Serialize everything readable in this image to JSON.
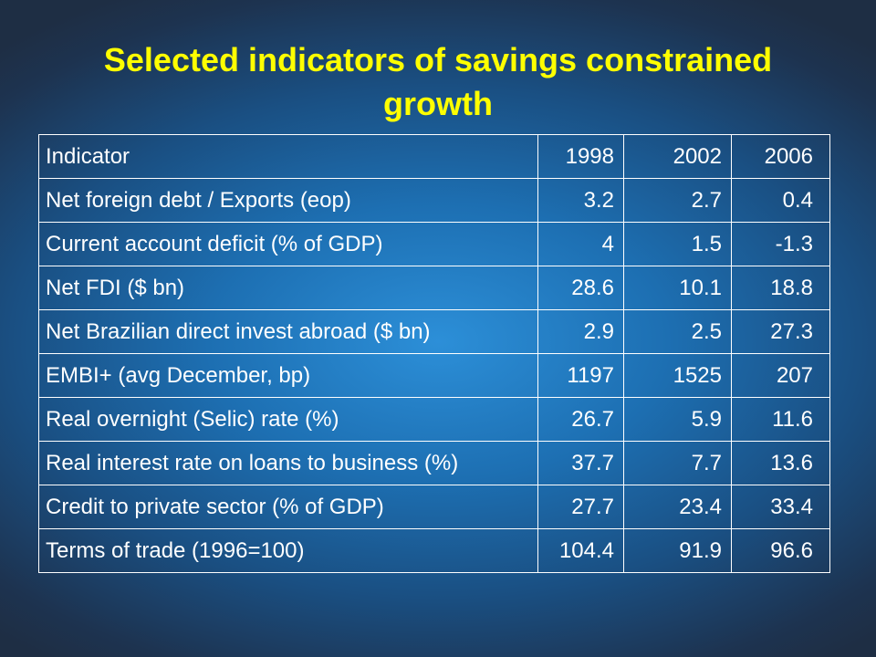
{
  "title": {
    "line1": "Selected indicators of savings constrained",
    "line2": "growth"
  },
  "table": {
    "header": [
      "Indicator",
      "1998",
      "2002",
      "2006"
    ],
    "rows": [
      [
        "Net foreign debt / Exports (eop)",
        "3.2",
        "2.7",
        "0.4"
      ],
      [
        "Current account deficit (% of GDP)",
        "4",
        "1.5",
        "-1.3"
      ],
      [
        "Net FDI ($ bn)",
        "28.6",
        "10.1",
        "18.8"
      ],
      [
        "Net Brazilian direct invest abroad ($ bn)",
        "2.9",
        "2.5",
        "27.3"
      ],
      [
        "EMBI+ (avg December, bp)",
        "1197",
        "1525",
        "207"
      ],
      [
        "Real overnight (Selic) rate (%)",
        "26.7",
        "5.9",
        "11.6"
      ],
      [
        "Real interest rate on loans to business (%)",
        "37.7",
        "7.7",
        "13.6"
      ],
      [
        "Credit to private sector (% of GDP)",
        "27.7",
        "23.4",
        "33.4"
      ],
      [
        "Terms of trade (1996=100)",
        "104.4",
        "91.9",
        "96.6"
      ]
    ]
  },
  "colors": {
    "title": "#ffff00",
    "text": "#ffffff",
    "background_center": "#2c8fd8",
    "background_edge": "#1e2e44"
  }
}
